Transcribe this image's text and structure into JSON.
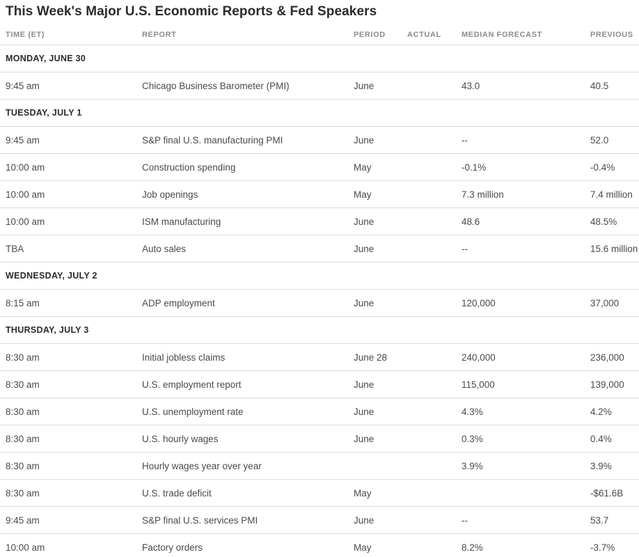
{
  "title": "This Week's Major U.S. Economic Reports & Fed Speakers",
  "table": {
    "columns": [
      {
        "key": "time",
        "label": "TIME (ET)"
      },
      {
        "key": "report",
        "label": "REPORT"
      },
      {
        "key": "period",
        "label": "PERIOD"
      },
      {
        "key": "actual",
        "label": "ACTUAL"
      },
      {
        "key": "median_forecast",
        "label": "MEDIAN FORECAST"
      },
      {
        "key": "previous",
        "label": "PREVIOUS"
      }
    ],
    "days": [
      {
        "label": "MONDAY, JUNE 30",
        "rows": [
          {
            "time": "9:45 am",
            "report": "Chicago Business Barometer (PMI)",
            "period": "June",
            "actual": "",
            "median_forecast": "43.0",
            "previous": "40.5"
          }
        ]
      },
      {
        "label": "TUESDAY, JULY 1",
        "rows": [
          {
            "time": "9:45 am",
            "report": "S&P final U.S. manufacturing PMI",
            "period": "June",
            "actual": "",
            "median_forecast": "--",
            "previous": "52.0"
          },
          {
            "time": "10:00 am",
            "report": "Construction spending",
            "period": "May",
            "actual": "",
            "median_forecast": "-0.1%",
            "previous": "-0.4%"
          },
          {
            "time": "10:00 am",
            "report": "Job openings",
            "period": "May",
            "actual": "",
            "median_forecast": "7.3 million",
            "previous": "7.4 million"
          },
          {
            "time": "10:00 am",
            "report": "ISM manufacturing",
            "period": "June",
            "actual": "",
            "median_forecast": "48.6",
            "previous": "48.5%"
          },
          {
            "time": "TBA",
            "report": "Auto sales",
            "period": "June",
            "actual": "",
            "median_forecast": "--",
            "previous": "15.6 million"
          }
        ]
      },
      {
        "label": "WEDNESDAY, JULY 2",
        "rows": [
          {
            "time": "8:15 am",
            "report": "ADP employment",
            "period": "June",
            "actual": "",
            "median_forecast": "120,000",
            "previous": "37,000"
          }
        ]
      },
      {
        "label": "THURSDAY, JULY 3",
        "rows": [
          {
            "time": "8:30 am",
            "report": "Initial jobless claims",
            "period": "June 28",
            "actual": "",
            "median_forecast": "240,000",
            "previous": "236,000"
          },
          {
            "time": "8:30 am",
            "report": "U.S. employment report",
            "period": "June",
            "actual": "",
            "median_forecast": "115,000",
            "previous": "139,000"
          },
          {
            "time": "8:30 am",
            "report": "U.S. unemployment rate",
            "period": "June",
            "actual": "",
            "median_forecast": "4.3%",
            "previous": "4.2%"
          },
          {
            "time": "8:30 am",
            "report": "U.S. hourly wages",
            "period": "June",
            "actual": "",
            "median_forecast": "0.3%",
            "previous": "0.4%"
          },
          {
            "time": "8:30 am",
            "report": "Hourly wages year over year",
            "period": "",
            "actual": "",
            "median_forecast": "3.9%",
            "previous": "3.9%"
          },
          {
            "time": "8:30 am",
            "report": "U.S. trade deficit",
            "period": "May",
            "actual": "",
            "median_forecast": "",
            "previous": "-$61.6B"
          },
          {
            "time": "9:45 am",
            "report": "S&P final U.S. services PMI",
            "period": "June",
            "actual": "",
            "median_forecast": "--",
            "previous": "53.7"
          },
          {
            "time": "10:00 am",
            "report": "Factory orders",
            "period": "May",
            "actual": "",
            "median_forecast": "8.2%",
            "previous": "-3.7%"
          }
        ]
      }
    ],
    "colors": {
      "title_text": "#2b2b2b",
      "day_header_text": "#2b2b2b",
      "column_header_text": "#8c8c8c",
      "cell_text": "#4a4a4a",
      "row_border": "#dcdcdc",
      "background": "#ffffff"
    }
  }
}
